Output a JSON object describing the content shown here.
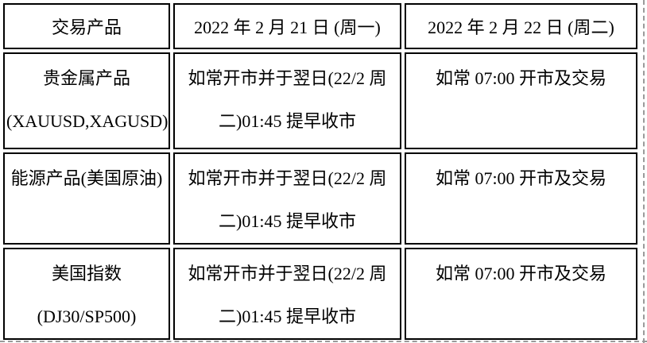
{
  "page": {
    "background_color": "#ffffff",
    "text_color": "#000000",
    "cell_border_color": "#000000",
    "boundary_dash_color": "#9a9a9a"
  },
  "table": {
    "header": [
      "交易产品",
      "2022 年 2 月 21 日 (周一)",
      "2022 年 2 月 22 日 (周二)"
    ],
    "rows": [
      {
        "product": [
          "贵金属产品",
          "(XAUUSD,XAGUSD)"
        ],
        "monday": [
          "如常开市并于翌日(22/2 周",
          "二)01:45 提早收市"
        ],
        "tuesday": "如常 07:00 开市及交易"
      },
      {
        "product": [
          "能源产品(美国原油)"
        ],
        "monday": [
          "如常开市并于翌日(22/2 周",
          "二)01:45 提早收市"
        ],
        "tuesday": "如常 07:00 开市及交易"
      },
      {
        "product": [
          "美国指数",
          "(DJ30/SP500)"
        ],
        "monday": [
          "如常开市并于翌日(22/2 周",
          "二)01:45 提早收市"
        ],
        "tuesday": "如常 07:00 开市及交易"
      }
    ]
  }
}
